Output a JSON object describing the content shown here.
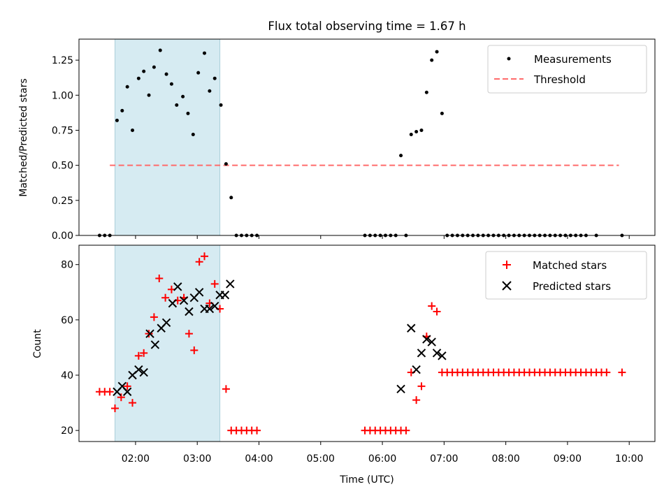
{
  "chart_data": [
    {
      "type": "scatter",
      "title": "Flux total observing time = 1.67 h",
      "xlabel": "",
      "ylabel": "Matched/Predicted stars",
      "ylim": [
        0,
        1.4
      ],
      "xlim": [
        "01:05",
        "10:25"
      ],
      "y_ticks": [
        0,
        0.25,
        0.5,
        0.75,
        1.0,
        1.25
      ],
      "y_tick_labels": [
        "0.00",
        "0.25",
        "0.50",
        "0.75",
        "1.00",
        "1.25"
      ],
      "highlight_span": [
        "01:40",
        "03:22"
      ],
      "legend_position": "top-right",
      "grid": false,
      "series": [
        {
          "name": "Measurements",
          "marker": "dot",
          "color": "#000000",
          "points": [
            [
              "01:25",
              0
            ],
            [
              "01:30",
              0
            ],
            [
              "01:35",
              0
            ],
            [
              "01:42",
              0.82
            ],
            [
              "01:47",
              0.89
            ],
            [
              "01:52",
              1.06
            ],
            [
              "01:57",
              0.75
            ],
            [
              "02:03",
              1.12
            ],
            [
              "02:08",
              1.17
            ],
            [
              "02:13",
              1.0
            ],
            [
              "02:18",
              1.2
            ],
            [
              "02:24",
              1.32
            ],
            [
              "02:30",
              1.15
            ],
            [
              "02:35",
              1.08
            ],
            [
              "02:40",
              0.93
            ],
            [
              "02:46",
              0.99
            ],
            [
              "02:51",
              0.87
            ],
            [
              "02:56",
              0.72
            ],
            [
              "03:01",
              1.16
            ],
            [
              "03:07",
              1.3
            ],
            [
              "03:12",
              1.03
            ],
            [
              "03:17",
              1.12
            ],
            [
              "03:23",
              0.93
            ],
            [
              "03:28",
              0.51
            ],
            [
              "03:33",
              0.27
            ],
            [
              "03:38",
              0
            ],
            [
              "03:43",
              0
            ],
            [
              "03:48",
              0
            ],
            [
              "03:53",
              0
            ],
            [
              "03:58",
              0
            ],
            [
              "05:43",
              0
            ],
            [
              "05:48",
              0
            ],
            [
              "05:53",
              0
            ],
            [
              "05:58",
              0
            ],
            [
              "06:03",
              0
            ],
            [
              "06:08",
              0
            ],
            [
              "06:13",
              0
            ],
            [
              "06:18",
              0.57
            ],
            [
              "06:23",
              0
            ],
            [
              "06:28",
              0.72
            ],
            [
              "06:33",
              0.74
            ],
            [
              "06:38",
              0.75
            ],
            [
              "06:43",
              1.02
            ],
            [
              "06:48",
              1.25
            ],
            [
              "06:53",
              1.31
            ],
            [
              "06:58",
              0.87
            ],
            [
              "07:03",
              0
            ],
            [
              "07:08",
              0
            ],
            [
              "07:13",
              0
            ],
            [
              "07:18",
              0
            ],
            [
              "07:23",
              0
            ],
            [
              "07:28",
              0
            ],
            [
              "07:33",
              0
            ],
            [
              "07:38",
              0
            ],
            [
              "07:43",
              0
            ],
            [
              "07:48",
              0
            ],
            [
              "07:53",
              0
            ],
            [
              "07:58",
              0
            ],
            [
              "08:03",
              0
            ],
            [
              "08:08",
              0
            ],
            [
              "08:13",
              0
            ],
            [
              "08:18",
              0
            ],
            [
              "08:23",
              0
            ],
            [
              "08:28",
              0
            ],
            [
              "08:33",
              0
            ],
            [
              "08:38",
              0
            ],
            [
              "08:43",
              0
            ],
            [
              "08:48",
              0
            ],
            [
              "08:53",
              0
            ],
            [
              "08:58",
              0
            ],
            [
              "09:03",
              0
            ],
            [
              "09:08",
              0
            ],
            [
              "09:13",
              0
            ],
            [
              "09:18",
              0
            ],
            [
              "09:28",
              0
            ],
            [
              "09:53",
              0
            ]
          ]
        },
        {
          "name": "Threshold",
          "marker": "dashed-line",
          "color": "#ff6b6b",
          "points": [
            [
              "01:35",
              0.5
            ],
            [
              "09:50",
              0.5
            ]
          ]
        }
      ]
    },
    {
      "type": "scatter",
      "title": "",
      "xlabel": "Time (UTC)",
      "ylabel": "Count",
      "ylim": [
        16,
        87
      ],
      "xlim": [
        "01:05",
        "10:25"
      ],
      "y_ticks": [
        20,
        40,
        60,
        80
      ],
      "y_tick_labels": [
        "20",
        "40",
        "60",
        "80"
      ],
      "x_ticks": [
        "02:00",
        "03:00",
        "04:00",
        "05:00",
        "06:00",
        "07:00",
        "08:00",
        "09:00",
        "10:00"
      ],
      "highlight_span": [
        "01:40",
        "03:22"
      ],
      "legend_position": "top-right",
      "grid": false,
      "series": [
        {
          "name": "Matched stars",
          "marker": "plus",
          "color": "#ff0000",
          "points": [
            [
              "01:25",
              34
            ],
            [
              "01:30",
              34
            ],
            [
              "01:35",
              34
            ],
            [
              "01:40",
              28
            ],
            [
              "01:46",
              32
            ],
            [
              "01:52",
              36
            ],
            [
              "01:57",
              30
            ],
            [
              "02:03",
              47
            ],
            [
              "02:08",
              48
            ],
            [
              "02:13",
              55
            ],
            [
              "02:18",
              61
            ],
            [
              "02:23",
              75
            ],
            [
              "02:29",
              68
            ],
            [
              "02:35",
              71
            ],
            [
              "02:41",
              67
            ],
            [
              "02:47",
              68
            ],
            [
              "02:52",
              55
            ],
            [
              "02:57",
              49
            ],
            [
              "03:02",
              81
            ],
            [
              "03:07",
              83
            ],
            [
              "03:12",
              66
            ],
            [
              "03:17",
              73
            ],
            [
              "03:22",
              64
            ],
            [
              "03:28",
              35
            ],
            [
              "03:33",
              20
            ],
            [
              "03:38",
              20
            ],
            [
              "03:43",
              20
            ],
            [
              "03:48",
              20
            ],
            [
              "03:53",
              20
            ],
            [
              "03:58",
              20
            ],
            [
              "05:43",
              20
            ],
            [
              "05:48",
              20
            ],
            [
              "05:53",
              20
            ],
            [
              "05:58",
              20
            ],
            [
              "06:03",
              20
            ],
            [
              "06:08",
              20
            ],
            [
              "06:13",
              20
            ],
            [
              "06:18",
              20
            ],
            [
              "06:23",
              20
            ],
            [
              "06:28",
              41
            ],
            [
              "06:33",
              31
            ],
            [
              "06:38",
              36
            ],
            [
              "06:43",
              54
            ],
            [
              "06:48",
              65
            ],
            [
              "06:53",
              63
            ],
            [
              "06:58",
              41
            ],
            [
              "07:03",
              41
            ],
            [
              "07:08",
              41
            ],
            [
              "07:13",
              41
            ],
            [
              "07:18",
              41
            ],
            [
              "07:23",
              41
            ],
            [
              "07:28",
              41
            ],
            [
              "07:33",
              41
            ],
            [
              "07:38",
              41
            ],
            [
              "07:43",
              41
            ],
            [
              "07:48",
              41
            ],
            [
              "07:53",
              41
            ],
            [
              "07:58",
              41
            ],
            [
              "08:03",
              41
            ],
            [
              "08:08",
              41
            ],
            [
              "08:13",
              41
            ],
            [
              "08:18",
              41
            ],
            [
              "08:23",
              41
            ],
            [
              "08:28",
              41
            ],
            [
              "08:33",
              41
            ],
            [
              "08:38",
              41
            ],
            [
              "08:43",
              41
            ],
            [
              "08:48",
              41
            ],
            [
              "08:53",
              41
            ],
            [
              "08:58",
              41
            ],
            [
              "09:03",
              41
            ],
            [
              "09:08",
              41
            ],
            [
              "09:13",
              41
            ],
            [
              "09:18",
              41
            ],
            [
              "09:23",
              41
            ],
            [
              "09:28",
              41
            ],
            [
              "09:33",
              41
            ],
            [
              "09:38",
              41
            ],
            [
              "09:53",
              41
            ]
          ]
        },
        {
          "name": "Predicted stars",
          "marker": "x",
          "color": "#000000",
          "points": [
            [
              "01:42",
              34
            ],
            [
              "01:47",
              36
            ],
            [
              "01:52",
              34
            ],
            [
              "01:57",
              40
            ],
            [
              "02:03",
              42
            ],
            [
              "02:08",
              41
            ],
            [
              "02:14",
              55
            ],
            [
              "02:19",
              51
            ],
            [
              "02:25",
              57
            ],
            [
              "02:30",
              59
            ],
            [
              "02:36",
              66
            ],
            [
              "02:41",
              72
            ],
            [
              "02:47",
              67
            ],
            [
              "02:52",
              63
            ],
            [
              "02:57",
              68
            ],
            [
              "03:02",
              70
            ],
            [
              "03:07",
              64
            ],
            [
              "03:12",
              64
            ],
            [
              "03:17",
              65
            ],
            [
              "03:22",
              69
            ],
            [
              "03:27",
              69
            ],
            [
              "03:32",
              73
            ],
            [
              "06:18",
              35
            ],
            [
              "06:28",
              57
            ],
            [
              "06:33",
              42
            ],
            [
              "06:38",
              48
            ],
            [
              "06:43",
              53
            ],
            [
              "06:48",
              52
            ],
            [
              "06:53",
              48
            ],
            [
              "06:58",
              47
            ]
          ]
        }
      ]
    }
  ]
}
